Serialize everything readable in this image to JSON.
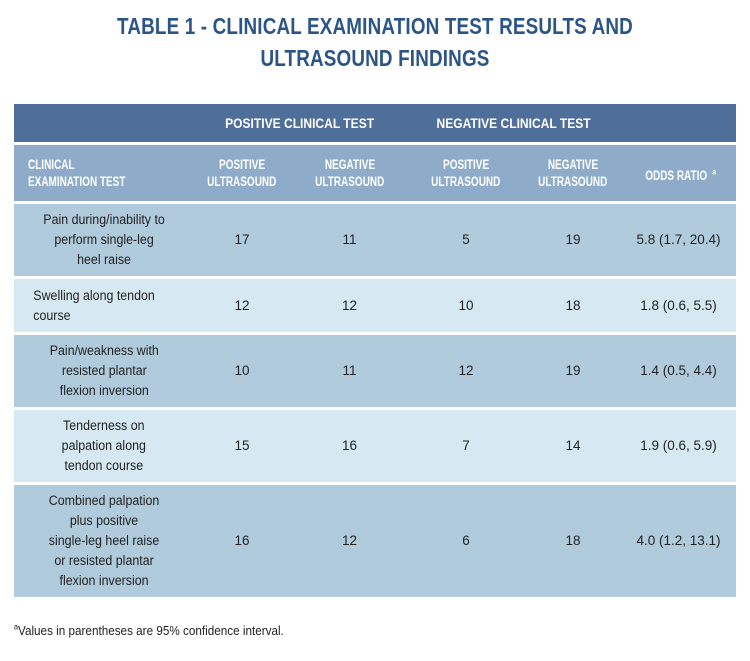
{
  "title": {
    "line1": "TABLE 1 - CLINICAL EXAMINATION TEST RESULTS AND",
    "line2": "ULTRASOUND FINDINGS"
  },
  "table": {
    "group_headers": {
      "positive": "POSITIVE CLINICAL TEST",
      "negative": "NEGATIVE CLINICAL TEST"
    },
    "column_headers": {
      "test_line1": "CLINICAL",
      "test_line2": "EXAMINATION TEST",
      "pos_us_line1": "POSITIVE",
      "pos_us_line2": "ULTRASOUND",
      "neg_us_line1": "NEGATIVE",
      "neg_us_line2": "ULTRASOUND",
      "pos_us2_line1": "POSITIVE",
      "pos_us2_line2": "ULTRASOUND",
      "neg_us2_line1": "NEGATIVE",
      "neg_us2_line2": "ULTRASOUND",
      "odds": "ODDS RATIO",
      "odds_sup": "a"
    },
    "rows": [
      {
        "test_lines": [
          "Pain during/inability to",
          "perform single-leg",
          "heel raise"
        ],
        "pos_pos": "17",
        "pos_neg": "11",
        "neg_pos": "5",
        "neg_neg": "19",
        "odds": "5.8 (1.7, 20.4)"
      },
      {
        "test_lines": [
          "Swelling along tendon",
          "course"
        ],
        "pos_pos": "12",
        "pos_neg": "12",
        "neg_pos": "10",
        "neg_neg": "18",
        "odds": "1.8 (0.6, 5.5)"
      },
      {
        "test_lines": [
          "Pain/weakness with",
          "resisted plantar",
          "flexion inversion"
        ],
        "pos_pos": "10",
        "pos_neg": "11",
        "neg_pos": "12",
        "neg_neg": "19",
        "odds": "1.4 (0.5, 4.4)"
      },
      {
        "test_lines": [
          "Tenderness on",
          "palpation along",
          "tendon course"
        ],
        "pos_pos": "15",
        "pos_neg": "16",
        "neg_pos": "7",
        "neg_neg": "14",
        "odds": "1.9 (0.6, 5.9)"
      },
      {
        "test_lines": [
          "Combined palpation",
          "plus positive",
          "single-leg heel raise",
          "or resisted plantar",
          "flexion inversion"
        ],
        "pos_pos": "16",
        "pos_neg": "12",
        "neg_pos": "6",
        "neg_neg": "18",
        "odds": "4.0 (1.2, 13.1)"
      }
    ]
  },
  "footnote": {
    "sup": "a",
    "text": "Values in parentheses are 95% confidence interval."
  },
  "colors": {
    "title": "#2b5487",
    "group_header_bg": "#4e6f9a",
    "column_header_bg": "#8eacc9",
    "row_dark_bg": "#b0cbdc",
    "row_light_bg": "#d6e9f3"
  }
}
